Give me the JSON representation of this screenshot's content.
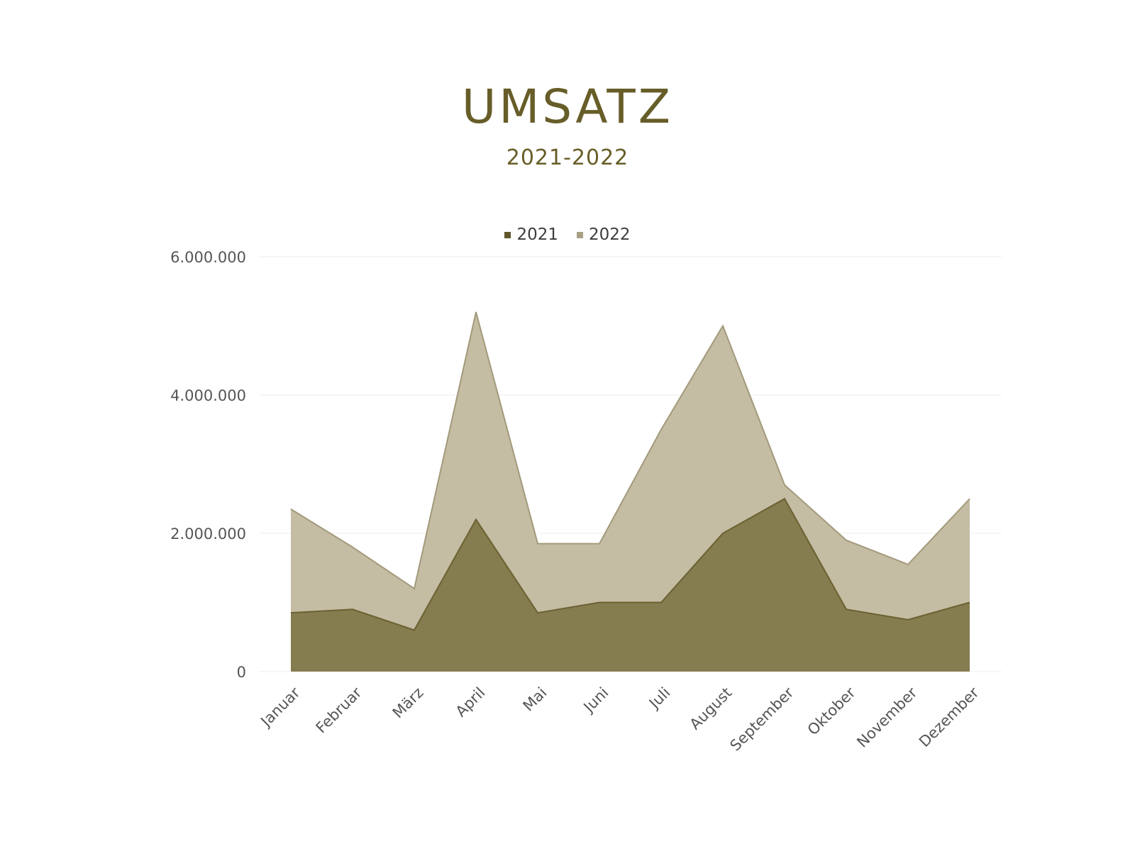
{
  "title": "UMSATZ",
  "subtitle": "2021-2022",
  "colors": {
    "series_2021": "#857c4f",
    "series_2021_line": "#6b6132",
    "series_2022": "#c4bca3",
    "series_2022_line": "#a39a7c",
    "title": "#675d28"
  },
  "chart_data": {
    "type": "area",
    "title": "UMSATZ",
    "subtitle": "2021-2022",
    "categories": [
      "Januar",
      "Februar",
      "März",
      "April",
      "Mai",
      "Juni",
      "Juli",
      "August",
      "September",
      "Oktober",
      "November",
      "Dezember"
    ],
    "series": [
      {
        "name": "2021",
        "values": [
          850000,
          900000,
          600000,
          2200000,
          850000,
          1000000,
          1000000,
          2000000,
          2500000,
          900000,
          750000,
          1000000
        ]
      },
      {
        "name": "2022",
        "values": [
          2350000,
          1800000,
          1200000,
          5200000,
          1850000,
          1850000,
          3500000,
          5000000,
          2700000,
          1900000,
          1550000,
          2500000
        ]
      }
    ],
    "ylim": [
      0,
      6000000
    ],
    "yticks": [
      0,
      2000000,
      4000000,
      6000000
    ],
    "ytick_labels": [
      "0",
      "2.000.000",
      "4.000.000",
      "6.000.000"
    ],
    "grid": true,
    "legend_position": "top-center"
  }
}
